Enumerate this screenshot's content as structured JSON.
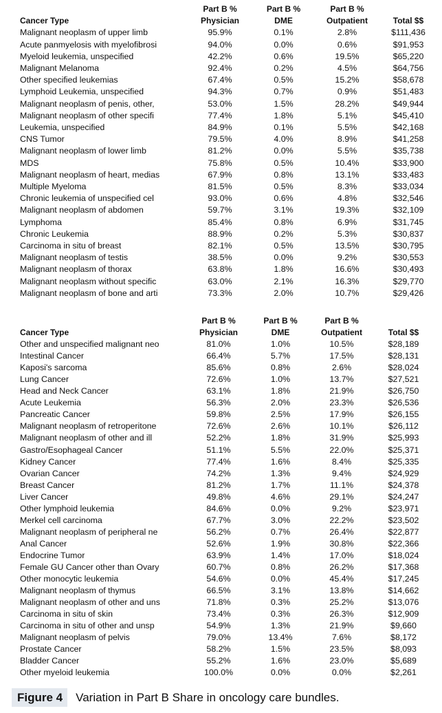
{
  "tables": [
    {
      "headers": {
        "top": [
          "",
          "Part B %",
          "Part B %",
          "Part B %",
          ""
        ],
        "bottom": [
          "Cancer Type",
          "Physician",
          "DME",
          "Outpatient",
          "Total $$"
        ]
      },
      "rows": [
        [
          "Malignant neoplasm of upper limb",
          "95.9%",
          "0.1%",
          "2.8%",
          "$111,436"
        ],
        [
          "Acute panmyelosis with myelofibrosi",
          "94.0%",
          "0.0%",
          "0.6%",
          "$91,953"
        ],
        [
          "Myeloid leukemia, unspecified",
          "42.2%",
          "0.6%",
          "19.5%",
          "$65,220"
        ],
        [
          "Malignant Melanoma",
          "92.4%",
          "0.2%",
          "4.5%",
          "$64,756"
        ],
        [
          "Other specified leukemias",
          "67.4%",
          "0.5%",
          "15.2%",
          "$58,678"
        ],
        [
          "Lymphoid Leukemia, unspecified",
          "94.3%",
          "0.7%",
          "0.9%",
          "$51,483"
        ],
        [
          "Malignant neoplasm of penis, other,",
          "53.0%",
          "1.5%",
          "28.2%",
          "$49,944"
        ],
        [
          "Malignant neoplasm of other specifi",
          "77.4%",
          "1.8%",
          "5.1%",
          "$45,410"
        ],
        [
          "Leukemia, unspecified",
          "84.9%",
          "0.1%",
          "5.5%",
          "$42,168"
        ],
        [
          "CNS Tumor",
          "79.5%",
          "4.0%",
          "8.9%",
          "$41,258"
        ],
        [
          "Malignant neoplasm of lower limb",
          "81.2%",
          "0.0%",
          "5.5%",
          "$35,738"
        ],
        [
          "MDS",
          "75.8%",
          "0.5%",
          "10.4%",
          "$33,900"
        ],
        [
          "Malignant neoplasm of heart, medias",
          "67.9%",
          "0.8%",
          "13.1%",
          "$33,483"
        ],
        [
          "Multiple Myeloma",
          "81.5%",
          "0.5%",
          "8.3%",
          "$33,034"
        ],
        [
          "Chronic leukemia of unspecified cel",
          "93.0%",
          "0.6%",
          "4.8%",
          "$32,546"
        ],
        [
          "Malignant neoplasm of abdomen",
          "59.7%",
          "3.1%",
          "19.3%",
          "$32,109"
        ],
        [
          "Lymphoma",
          "85.4%",
          "0.8%",
          "6.9%",
          "$31,745"
        ],
        [
          "Chronic Leukemia",
          "88.9%",
          "0.2%",
          "5.3%",
          "$30,837"
        ],
        [
          "Carcinoma in situ of breast",
          "82.1%",
          "0.5%",
          "13.5%",
          "$30,795"
        ],
        [
          "Malignant neoplasm of testis",
          "38.5%",
          "0.0%",
          "9.2%",
          "$30,553"
        ],
        [
          "Malignant neoplasm of thorax",
          "63.8%",
          "1.8%",
          "16.6%",
          "$30,493"
        ],
        [
          "Malignant neoplasm without specific",
          "63.0%",
          "2.1%",
          "16.3%",
          "$29,770"
        ],
        [
          "Malignant neoplasm of bone and arti",
          "73.3%",
          "2.0%",
          "10.7%",
          "$29,426"
        ]
      ]
    },
    {
      "headers": {
        "top": [
          "",
          "Part B %",
          "Part B %",
          "Part B %",
          ""
        ],
        "bottom": [
          "Cancer Type",
          "Physician",
          "DME",
          "Outpatient",
          "Total $$"
        ]
      },
      "rows": [
        [
          "Other and unspecified malignant neo",
          "81.0%",
          "1.0%",
          "10.5%",
          "$28,189"
        ],
        [
          "Intestinal Cancer",
          "66.4%",
          "5.7%",
          "17.5%",
          "$28,131"
        ],
        [
          "Kaposi's sarcoma",
          "85.6%",
          "0.8%",
          "2.6%",
          "$28,024"
        ],
        [
          "Lung Cancer",
          "72.6%",
          "1.0%",
          "13.7%",
          "$27,521"
        ],
        [
          "Head and Neck Cancer",
          "63.1%",
          "1.8%",
          "21.9%",
          "$26,750"
        ],
        [
          "Acute Leukemia",
          "56.3%",
          "2.0%",
          "23.3%",
          "$26,536"
        ],
        [
          "Pancreatic Cancer",
          "59.8%",
          "2.5%",
          "17.9%",
          "$26,155"
        ],
        [
          "Malignant neoplasm of retroperitone",
          "72.6%",
          "2.6%",
          "10.1%",
          "$26,112"
        ],
        [
          "Malignant neoplasm of other and ill",
          "52.2%",
          "1.8%",
          "31.9%",
          "$25,993"
        ],
        [
          "Gastro/Esophageal Cancer",
          "51.1%",
          "5.5%",
          "22.0%",
          "$25,371"
        ],
        [
          "Kidney Cancer",
          "77.4%",
          "1.6%",
          "8.4%",
          "$25,335"
        ],
        [
          "Ovarian Cancer",
          "74.2%",
          "1.3%",
          "9.4%",
          "$24,929"
        ],
        [
          "Breast Cancer",
          "81.2%",
          "1.7%",
          "11.1%",
          "$24,378"
        ],
        [
          "Liver Cancer",
          "49.8%",
          "4.6%",
          "29.1%",
          "$24,247"
        ],
        [
          "Other lymphoid leukemia",
          "84.6%",
          "0.0%",
          "9.2%",
          "$23,971"
        ],
        [
          "Merkel cell carcinoma",
          "67.7%",
          "3.0%",
          "22.2%",
          "$23,502"
        ],
        [
          "Malignant neoplasm of peripheral ne",
          "56.2%",
          "0.7%",
          "26.4%",
          "$22,877"
        ],
        [
          "Anal Cancer",
          "52.6%",
          "1.9%",
          "30.8%",
          "$22,366"
        ],
        [
          "Endocrine Tumor",
          "63.9%",
          "1.4%",
          "17.0%",
          "$18,024"
        ],
        [
          "Female GU Cancer other than Ovary",
          "60.7%",
          "0.8%",
          "26.2%",
          "$17,368"
        ],
        [
          "Other monocytic leukemia",
          "54.6%",
          "0.0%",
          "45.4%",
          "$17,245"
        ],
        [
          "Malignant neoplasm of thymus",
          "66.5%",
          "3.1%",
          "13.8%",
          "$14,662"
        ],
        [
          "Malignant neoplasm of other and uns",
          "71.8%",
          "0.3%",
          "25.2%",
          "$13,076"
        ],
        [
          "Carcinoma in situ of skin",
          "73.4%",
          "0.3%",
          "26.3%",
          "$12,909"
        ],
        [
          "Carcinoma in situ of other and unsp",
          "54.9%",
          "1.3%",
          "21.9%",
          "$9,660"
        ],
        [
          "Malignant neoplasm of pelvis",
          "79.0%",
          "13.4%",
          "7.6%",
          "$8,172"
        ],
        [
          "Prostate Cancer",
          "58.2%",
          "1.5%",
          "23.5%",
          "$8,093"
        ],
        [
          "Bladder Cancer",
          "55.2%",
          "1.6%",
          "23.0%",
          "$5,689"
        ],
        [
          "Other myeloid leukemia",
          "100.0%",
          "0.0%",
          "0.0%",
          "$2,261"
        ]
      ]
    }
  ],
  "caption": {
    "label": "Figure 4",
    "text": "Variation in Part B Share in oncology care bundles.",
    "label_bg": "#e3e8ee"
  }
}
